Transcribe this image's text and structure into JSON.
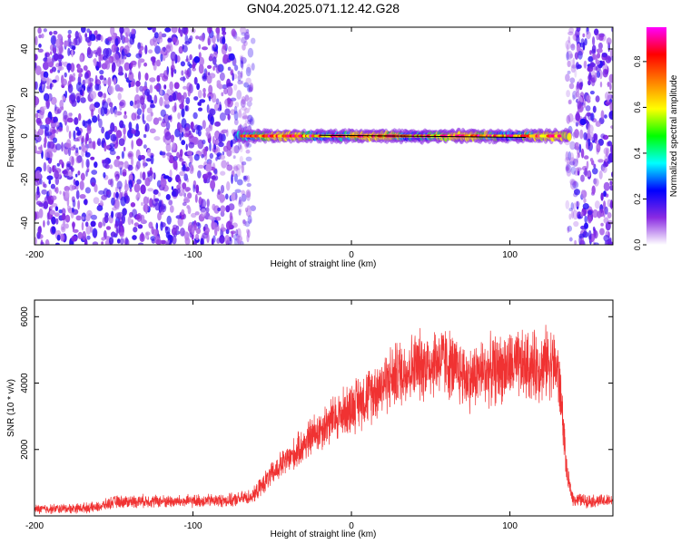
{
  "title": "GN04.2025.071.12.42.G28",
  "chart_data": [
    {
      "type": "heatmap",
      "xlabel": "Height of straight line (km)",
      "ylabel": "Frequency (Hz)",
      "xlim": [
        -200,
        165
      ],
      "ylim": [
        -50,
        50
      ],
      "x_ticks": [
        -200,
        -100,
        0,
        100
      ],
      "y_ticks": [
        -40,
        -20,
        0,
        20,
        40
      ],
      "noise_band_left": [
        -200,
        -62
      ],
      "noise_band_right": [
        136,
        165
      ],
      "signal": {
        "x_range": [
          -73,
          138
        ],
        "frequency": 0,
        "frequency_spread": 3,
        "peak_amplitude": 0.95
      },
      "colorbar": {
        "label": "Normalized spectral amplitude",
        "range": [
          0,
          0.95
        ],
        "ticks": [
          0.0,
          0.2,
          0.4,
          0.6,
          0.8
        ],
        "colors": [
          "#ffffff",
          "#8a2be2",
          "#0000ff",
          "#00ffff",
          "#00ff00",
          "#ffff00",
          "#ff8000",
          "#ff0000",
          "#ff00ff"
        ]
      }
    },
    {
      "type": "line",
      "xlabel": "Height of straight line (km)",
      "ylabel": "SNR (10 * v/v)",
      "xlim": [
        -200,
        165
      ],
      "ylim": [
        0,
        6500
      ],
      "x_ticks": [
        -200,
        -100,
        0,
        100
      ],
      "y_ticks": [
        2000,
        4000,
        6000
      ],
      "color": "#f03232",
      "series": [
        {
          "x": [
            -200,
            -180,
            -160,
            -150,
            -130,
            -110,
            -90,
            -75,
            -62,
            -55,
            -45,
            -35,
            -25,
            -15,
            -5,
            0,
            10,
            20,
            30,
            40,
            50,
            55,
            60,
            65,
            70,
            75,
            80,
            90,
            100,
            110,
            120,
            125,
            130,
            133,
            136,
            140,
            150,
            165
          ],
          "values": [
            200,
            220,
            260,
            420,
            450,
            430,
            460,
            470,
            600,
            1000,
            1500,
            1900,
            2400,
            2800,
            3100,
            3300,
            3600,
            4000,
            4300,
            4500,
            4600,
            4700,
            4650,
            4400,
            4300,
            4100,
            4300,
            4400,
            4500,
            4500,
            4500,
            4700,
            4400,
            3200,
            1200,
            500,
            450,
            450
          ]
        }
      ]
    }
  ]
}
